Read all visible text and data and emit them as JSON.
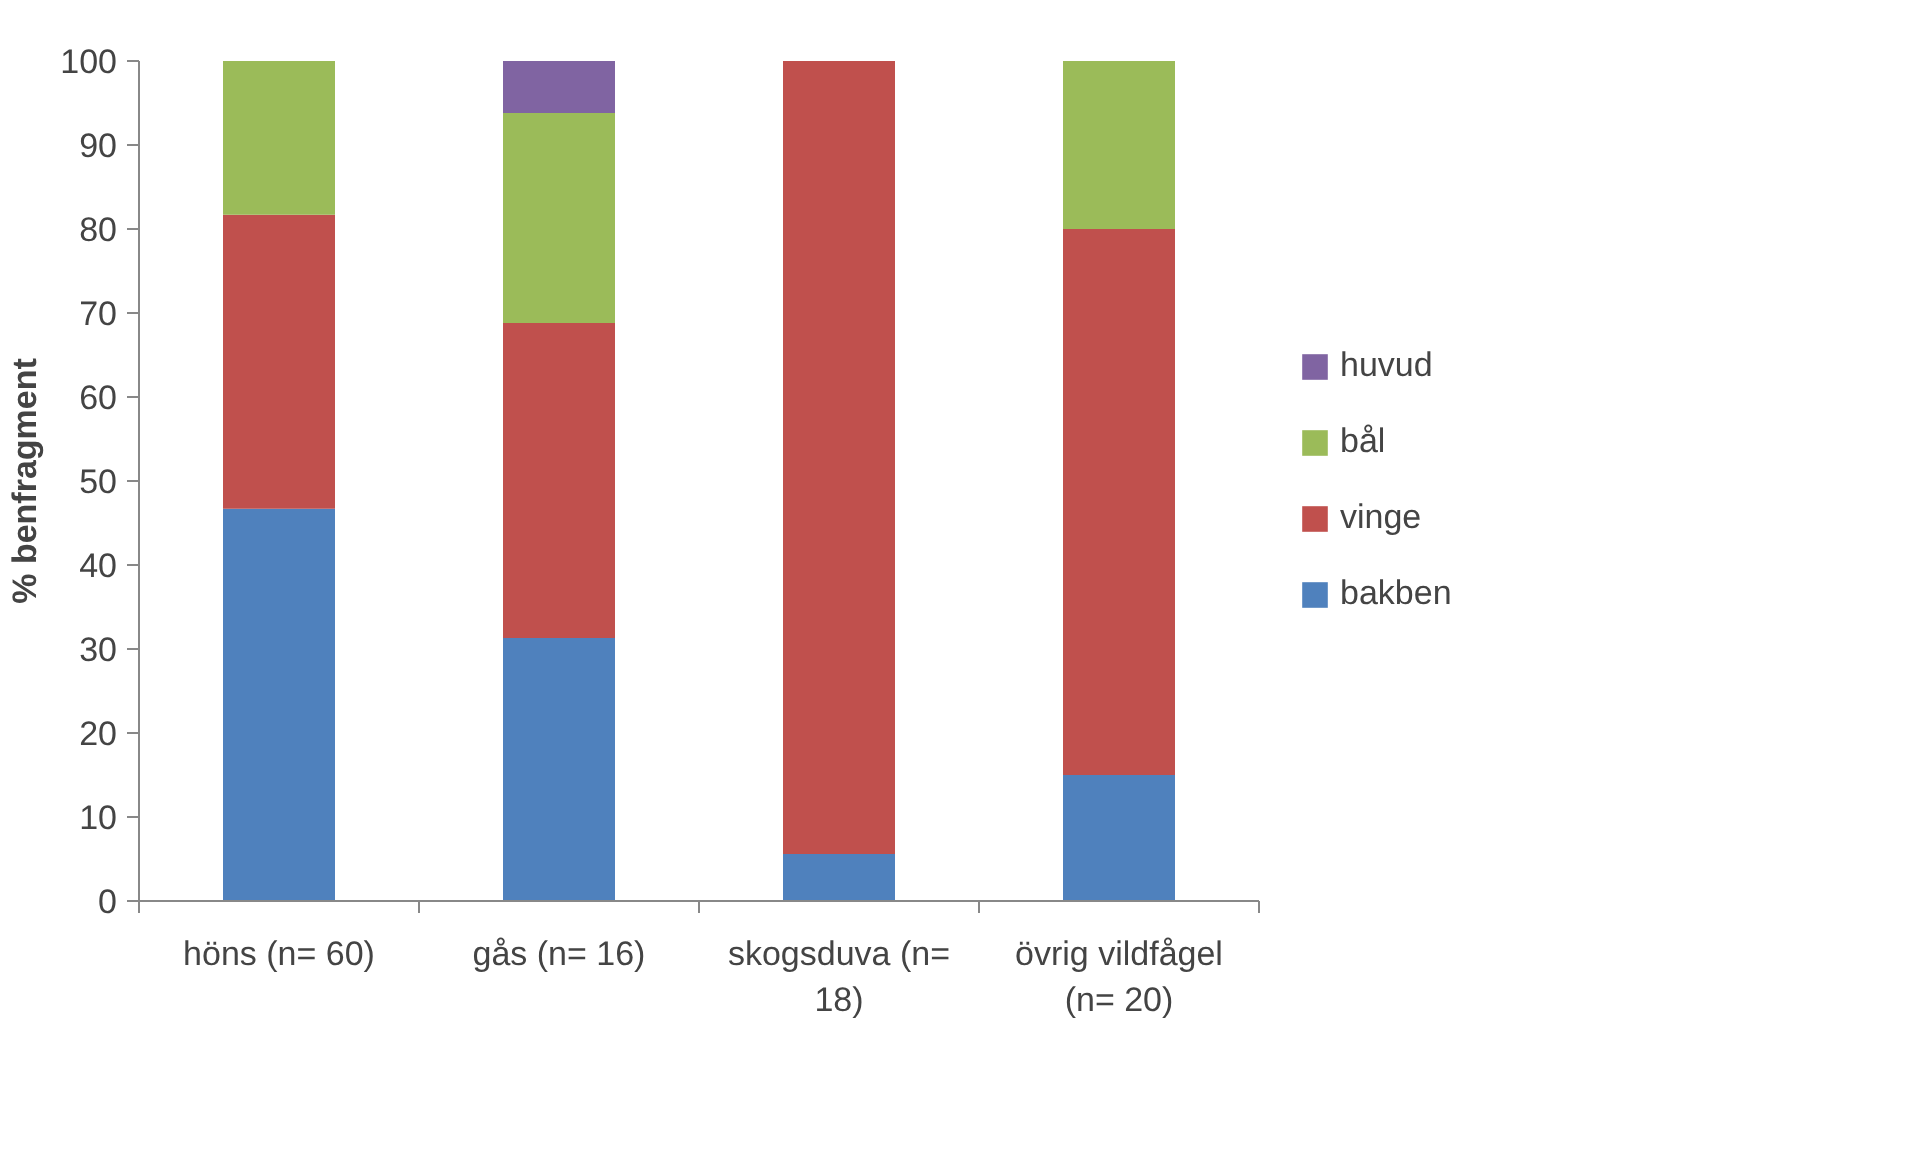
{
  "chart_data": {
    "type": "bar",
    "stacked": true,
    "ylabel": "% benfragment",
    "categories": [
      "höns (n= 60)",
      "gås (n= 16)",
      "skogsduva (n= 18)",
      "övrig vildfågel (n= 20)"
    ],
    "series": [
      {
        "name": "bakben",
        "color": "#4f81bd",
        "values": [
          46.7,
          31.3,
          5.6,
          15
        ]
      },
      {
        "name": "vinge",
        "color": "#c0504d",
        "values": [
          35,
          37.5,
          94.4,
          65
        ]
      },
      {
        "name": "bål",
        "color": "#9bbb59",
        "values": [
          18.3,
          25,
          null,
          20
        ]
      },
      {
        "name": "huvud",
        "color": "#8064a2",
        "values": [
          null,
          6.2,
          null,
          null
        ]
      }
    ],
    "ylim": [
      0,
      100
    ],
    "yticks": [
      0,
      10,
      20,
      30,
      40,
      50,
      60,
      70,
      80,
      90,
      100
    ],
    "grid": false,
    "legend": "right"
  }
}
